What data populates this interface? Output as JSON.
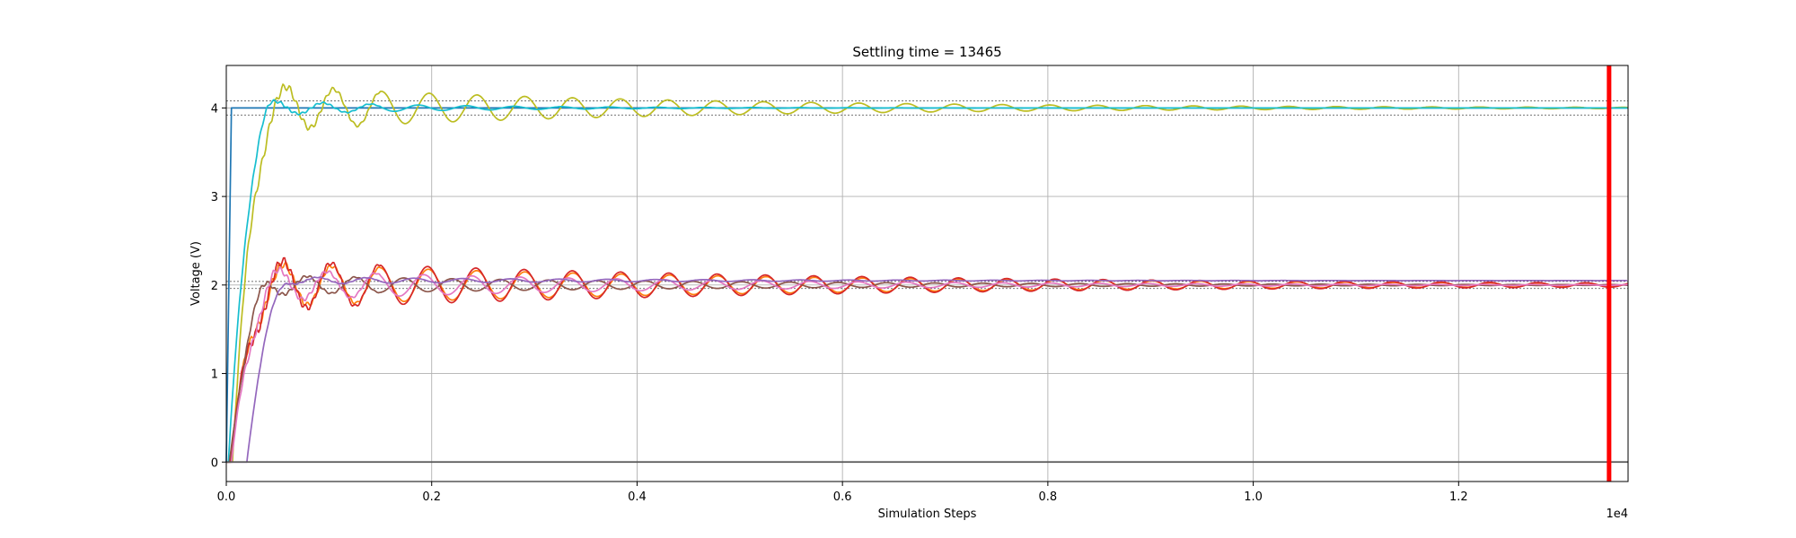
{
  "chart_data": {
    "type": "line",
    "title": "Settling time = 13465",
    "xlabel": "Simulation Steps",
    "ylabel": "Voltage (V)",
    "x_offset_label": "1e4",
    "xlim": [
      0,
      13650
    ],
    "ylim": [
      -0.22,
      4.48
    ],
    "x_ticks": [
      0,
      2000,
      4000,
      6000,
      8000,
      10000,
      12000
    ],
    "x_tick_labels": [
      "0.0",
      "0.2",
      "0.4",
      "0.6",
      "0.8",
      "1.0",
      "1.2"
    ],
    "y_ticks": [
      0,
      1,
      2,
      3,
      4
    ],
    "y_tick_labels": [
      "0",
      "1",
      "2",
      "3",
      "4"
    ],
    "grid": true,
    "settling_marker": {
      "x": 13465,
      "color": "#ff0000"
    },
    "tolerance_bands": [
      {
        "center": 4.0,
        "half_width": 0.08
      },
      {
        "center": 2.0,
        "half_width": 0.04
      }
    ],
    "series": [
      {
        "color": "#1f77b4",
        "kind": "step",
        "x0": 50,
        "target": 4.0
      },
      {
        "color": "#bcbd22",
        "kind": "oscillation",
        "target": 4.0,
        "amplitude": 0.28,
        "decay_tau": 3800,
        "period": 465,
        "phase": 0.0,
        "start": 60
      },
      {
        "color": "#17becf",
        "kind": "oscillation",
        "target": 4.0,
        "amplitude": 0.1,
        "decay_tau": 1700,
        "period": 465,
        "phase": 1.4,
        "start": 20
      },
      {
        "color": "#ff7f0e",
        "kind": "oscillation",
        "target": 2.0,
        "amplitude": 0.26,
        "decay_tau": 5200,
        "period": 470,
        "phase": 0.4,
        "start": 40
      },
      {
        "color": "#d62728",
        "kind": "oscillation",
        "target": 2.0,
        "amplitude": 0.3,
        "decay_tau": 5400,
        "period": 470,
        "phase": 0.5,
        "start": 40
      },
      {
        "color": "#8c564b",
        "kind": "oscillation",
        "target": 2.0,
        "amplitude": 0.12,
        "decay_tau": 4200,
        "period": 470,
        "phase": 3.6,
        "start": 30
      },
      {
        "color": "#e377c2",
        "kind": "oscillation",
        "target": 2.0,
        "amplitude": 0.2,
        "decay_tau": 3600,
        "period": 470,
        "phase": 1.0,
        "start": 50
      },
      {
        "color": "#9467bd",
        "kind": "oscillation",
        "target": 2.05,
        "amplitude": 0.05,
        "decay_tau": 3000,
        "period": 470,
        "phase": 2.2,
        "start": 200
      },
      {
        "color": "#555555",
        "kind": "constant",
        "value": 0.0
      }
    ]
  }
}
